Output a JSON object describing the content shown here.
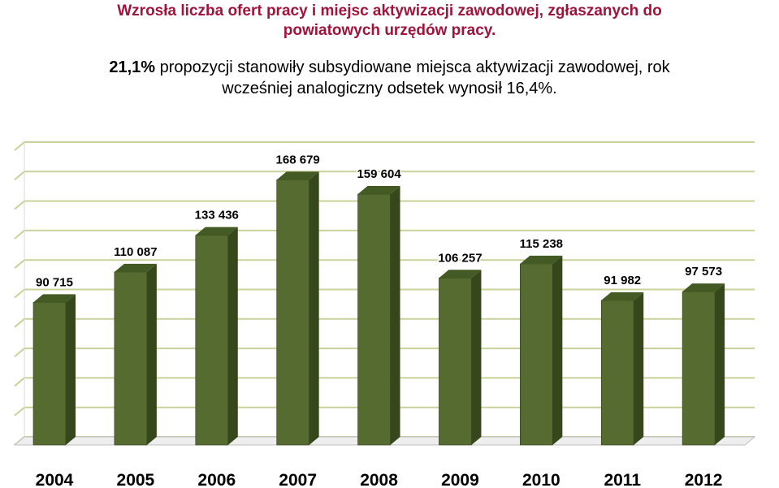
{
  "header": {
    "title_line1": "Wzrosła liczba ofert pracy i miejsc aktywizacji zawodowej, zgłaszanych do",
    "title_line2": "powiatowych urzędów pracy.",
    "subtitle_bold": "21,1%",
    "subtitle_line1_rest": " propozycji stanowiły subsydiowane miejsca aktywizacji zawodowej, rok",
    "subtitle_line2": "wcześniej analogiczny odsetek wynosił  16,4%."
  },
  "colors": {
    "title": "#a0143c",
    "bar_front": "#556b2f",
    "bar_side": "#36471c",
    "bar_top": "#445a25",
    "grid": "#c8d29a"
  },
  "chart_data": {
    "type": "bar",
    "categories": [
      "2004",
      "2005",
      "2006",
      "2007",
      "2008",
      "2009",
      "2010",
      "2011",
      "2012"
    ],
    "values": [
      90715,
      110087,
      133436,
      168679,
      159604,
      106257,
      115238,
      91982,
      97573
    ],
    "data_labels": [
      "90 715",
      "110 087",
      "133 436",
      "168 679",
      "159 604",
      "106 257",
      "115 238",
      "91 982",
      "97 573"
    ],
    "ylim": [
      0,
      187500
    ],
    "grid": true,
    "legend": "none",
    "style": "3d-columns"
  }
}
